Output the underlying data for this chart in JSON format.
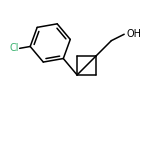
{
  "bg_color": "#ffffff",
  "bond_color": "#000000",
  "font_size_cl": 7.0,
  "font_size_oh": 7.0,
  "line_width": 1.1,
  "cl_color": "#3cb371",
  "oh_o_color": "#ff4500"
}
